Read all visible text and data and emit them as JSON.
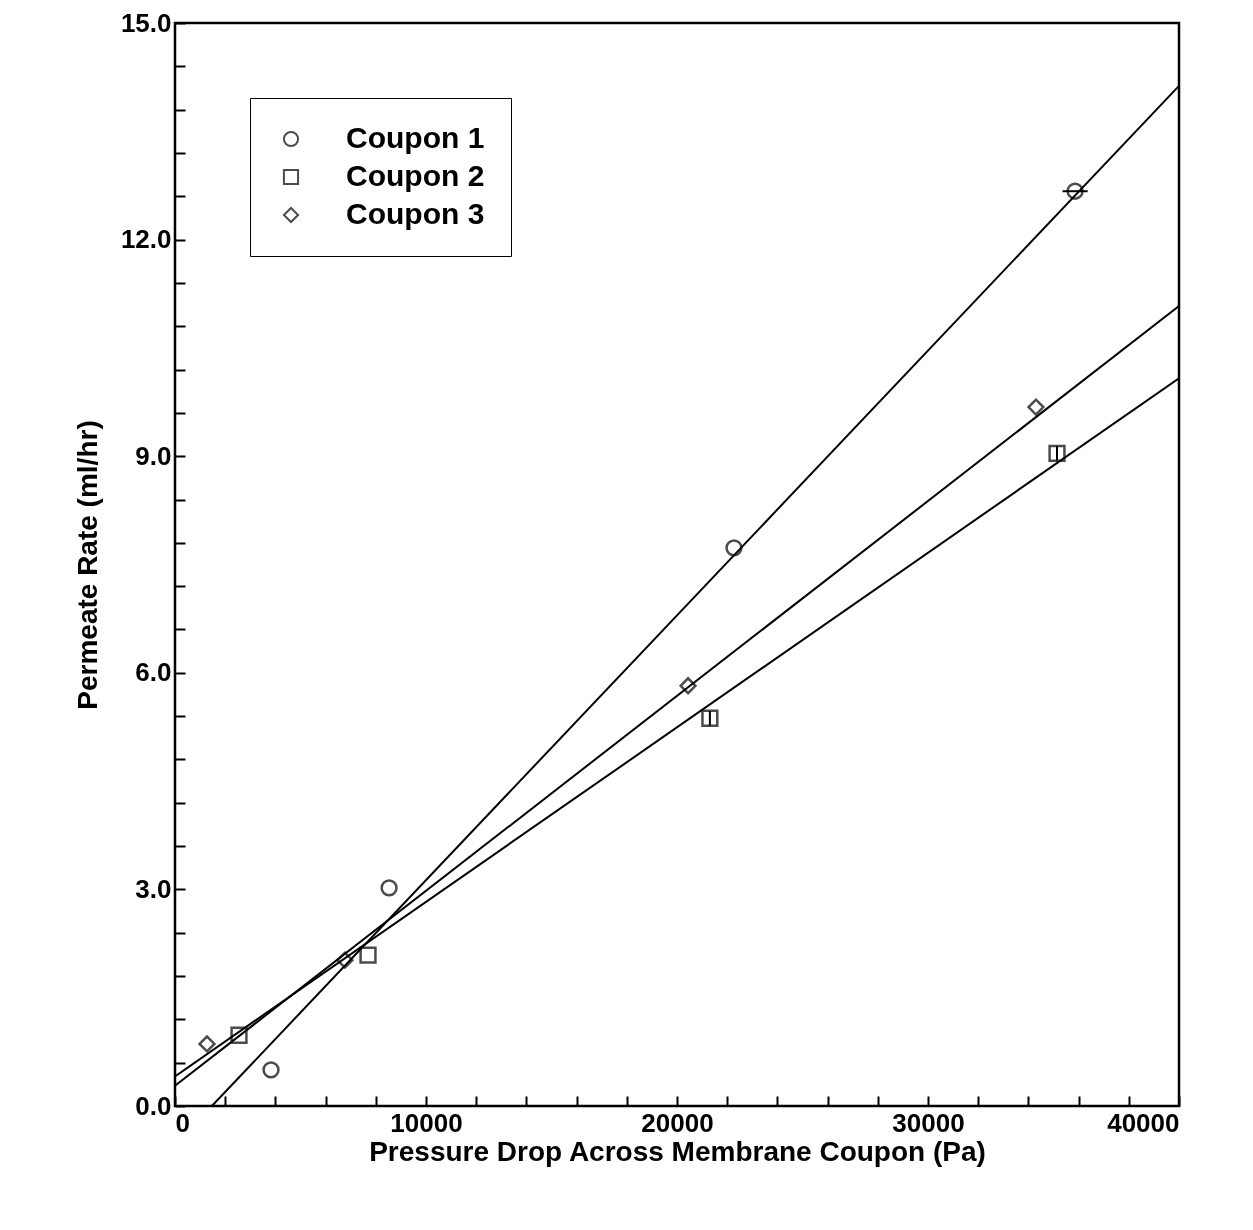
{
  "chart_data": {
    "type": "scatter",
    "xlabel": "Pressure Drop Across Membrane Coupon (Pa)",
    "ylabel": "Permeate Rate (ml/hr)",
    "xlim": [
      0,
      40000
    ],
    "ylim": [
      0,
      15
    ],
    "xticks": [
      0,
      {
        "value": 2000,
        "label": null
      },
      {
        "value": 4000,
        "label": null
      },
      {
        "value": 6000,
        "label": null
      },
      {
        "value": 8000,
        "label": null
      },
      10000,
      {
        "value": 12000,
        "label": null
      },
      {
        "value": 14000,
        "label": null
      },
      {
        "value": 16000,
        "label": null
      },
      {
        "value": 18000,
        "label": null
      },
      20000,
      {
        "value": 22000,
        "label": null
      },
      {
        "value": 24000,
        "label": null
      },
      {
        "value": 26000,
        "label": null
      },
      {
        "value": 28000,
        "label": null
      },
      30000,
      {
        "value": 32000,
        "label": null
      },
      {
        "value": 34000,
        "label": null
      },
      {
        "value": 36000,
        "label": null
      },
      {
        "value": 38000,
        "label": null
      },
      40000
    ],
    "yticks": [
      {
        "value": 0,
        "label": "0.0"
      },
      {
        "value": 0.6,
        "label": null
      },
      {
        "value": 1.2,
        "label": null
      },
      {
        "value": 1.8,
        "label": null
      },
      {
        "value": 2.4,
        "label": null
      },
      {
        "value": 3,
        "label": "3.0"
      },
      {
        "value": 3.6,
        "label": null
      },
      {
        "value": 4.2,
        "label": null
      },
      {
        "value": 4.8,
        "label": null
      },
      {
        "value": 5.4,
        "label": null
      },
      {
        "value": 6,
        "label": "6.0"
      },
      {
        "value": 6.6,
        "label": null
      },
      {
        "value": 7.2,
        "label": null
      },
      {
        "value": 7.8,
        "label": null
      },
      {
        "value": 8.4,
        "label": null
      },
      {
        "value": 9,
        "label": "9.0"
      },
      {
        "value": 9.6,
        "label": null
      },
      {
        "value": 10.2,
        "label": null
      },
      {
        "value": 10.8,
        "label": null
      },
      {
        "value": 11.4,
        "label": null
      },
      {
        "value": 12,
        "label": "12.0"
      },
      {
        "value": 12.6,
        "label": null
      },
      {
        "value": 13.2,
        "label": null
      },
      {
        "value": 13.8,
        "label": null
      },
      {
        "value": 14.4,
        "label": null
      },
      {
        "value": 15,
        "label": "15.0"
      }
    ],
    "grid": false,
    "legend": "top left",
    "series": [
      {
        "name": "Coupon 1",
        "marker": "circle",
        "color": "#000000",
        "x": [
          3825,
          8530,
          22270,
          35860
        ],
        "values": [
          0.5,
          3.02,
          7.73,
          12.67
        ],
        "xerrors": [
          null,
          null,
          null,
          500
        ]
      },
      {
        "name": "Coupon 2",
        "marker": "square",
        "color": "#000000",
        "x": [
          2550,
          7690,
          21310,
          35140
        ],
        "values": [
          0.98,
          2.09,
          5.37,
          9.04
        ],
        "errors": [
          null,
          null,
          0.1,
          0.1
        ]
      },
      {
        "name": "Coupon 3",
        "marker": "diamond",
        "color": "#000000",
        "x": [
          1275,
          6770,
          20440,
          34300
        ],
        "values": [
          0.86,
          2.02,
          5.82,
          9.68
        ]
      },
      {
        "type": "line",
        "color": "#000000",
        "x": [
          1470,
          40000
        ],
        "values": [
          0,
          14.13
        ]
      },
      {
        "type": "line",
        "color": "#000000",
        "x": [
          0,
          40000
        ],
        "values": [
          0.41,
          10.08
        ]
      },
      {
        "type": "line",
        "color": "#000000",
        "x": [
          0,
          40000
        ],
        "values": [
          0.28,
          11.08
        ]
      }
    ]
  }
}
